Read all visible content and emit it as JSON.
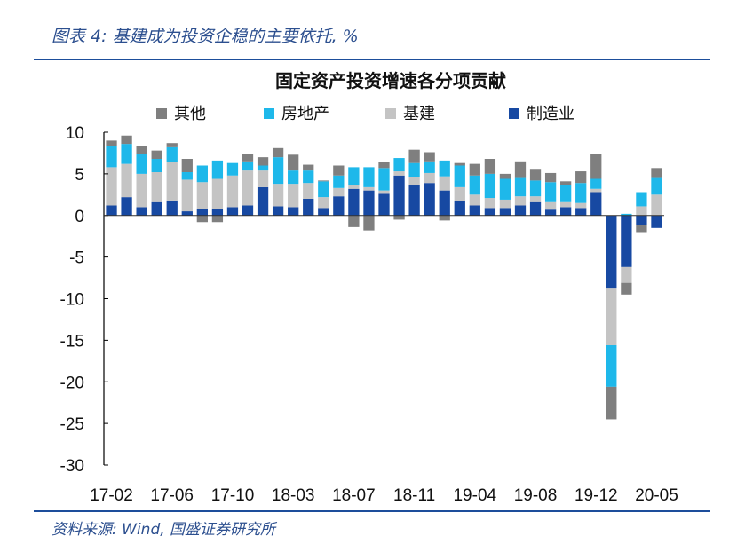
{
  "header": {
    "title": "图表 4: 基建成为投资企稳的主要依托, %"
  },
  "footer": {
    "source": "资料来源: Wind, 国盛证券研究所"
  },
  "colors": {
    "其他": "#7f7f7f",
    "房地产": "#1eb8ea",
    "基建": "#c4c4c4",
    "制造业": "#1749a2",
    "rule": "#1d4e9b"
  },
  "chart_data": {
    "type": "bar",
    "stacked": true,
    "title": "固定资产投资增速各分项贡献",
    "xlabel": "",
    "ylabel": "",
    "ylim": [
      -30,
      10
    ],
    "yticks": [
      10,
      5,
      0,
      -5,
      -10,
      -15,
      -20,
      -25,
      -30
    ],
    "legend": "top",
    "grid": false,
    "categories": [
      "17-02",
      "17-03",
      "17-04",
      "17-05",
      "17-06",
      "17-07",
      "17-08",
      "17-09",
      "17-10",
      "17-11",
      "17-12",
      "18-02",
      "18-03",
      "18-04",
      "18-05",
      "18-06",
      "18-07",
      "18-08",
      "18-09",
      "18-10",
      "18-11",
      "18-12",
      "19-02",
      "19-03",
      "19-04",
      "19-05",
      "19-06",
      "19-07",
      "19-08",
      "19-09",
      "19-10",
      "19-11",
      "19-12",
      "20-02",
      "20-03",
      "20-04",
      "20-05"
    ],
    "xtick_labels": [
      "17-02",
      "17-06",
      "17-10",
      "18-03",
      "18-07",
      "18-11",
      "19-04",
      "19-08",
      "19-12",
      "20-05"
    ],
    "series": [
      {
        "name": "制造业",
        "values": [
          1.2,
          2.2,
          1.0,
          1.6,
          1.8,
          0.5,
          0.8,
          0.8,
          1.0,
          1.2,
          3.4,
          1.1,
          1.0,
          2.0,
          0.9,
          2.3,
          3.2,
          3.0,
          2.6,
          4.8,
          3.6,
          3.9,
          3.0,
          1.7,
          1.2,
          0.9,
          0.9,
          1.2,
          1.6,
          0.7,
          1.0,
          0.9,
          2.8,
          -8.8,
          -6.2,
          -1.1,
          -1.5
        ]
      },
      {
        "name": "基建",
        "values": [
          4.6,
          4.0,
          4.0,
          3.6,
          4.6,
          3.8,
          3.2,
          3.6,
          3.8,
          4.2,
          2.0,
          2.7,
          2.8,
          1.9,
          1.3,
          1.0,
          0.4,
          0.4,
          0.4,
          0.5,
          1.0,
          1.2,
          1.7,
          1.7,
          1.3,
          1.2,
          1.0,
          1.1,
          0.7,
          0.9,
          0.6,
          0.6,
          0.4,
          -6.8,
          -1.9,
          1.1,
          2.5
        ]
      },
      {
        "name": "房地产",
        "values": [
          2.6,
          2.4,
          2.4,
          1.6,
          1.8,
          0.9,
          2.0,
          2.2,
          1.5,
          1.1,
          0.6,
          3.2,
          1.6,
          1.5,
          1.9,
          1.5,
          2.2,
          2.4,
          2.7,
          1.6,
          1.7,
          1.4,
          1.9,
          2.6,
          2.3,
          2.9,
          2.5,
          2.2,
          1.9,
          2.4,
          2.0,
          2.4,
          1.2,
          -5.0,
          0.2,
          1.7,
          2.0
        ]
      },
      {
        "name": "其他",
        "values": [
          0.6,
          1.0,
          1.0,
          1.0,
          0.5,
          1.6,
          -0.8,
          -0.8,
          0.0,
          0.9,
          1.0,
          1.1,
          1.9,
          0.7,
          0.1,
          1.2,
          -1.4,
          -1.8,
          0.7,
          -0.5,
          1.6,
          1.1,
          -0.6,
          0.3,
          1.4,
          1.8,
          0.6,
          2.0,
          1.4,
          1.1,
          0.5,
          1.4,
          3.0,
          -3.9,
          -1.4,
          -0.9,
          1.2
        ]
      }
    ]
  }
}
